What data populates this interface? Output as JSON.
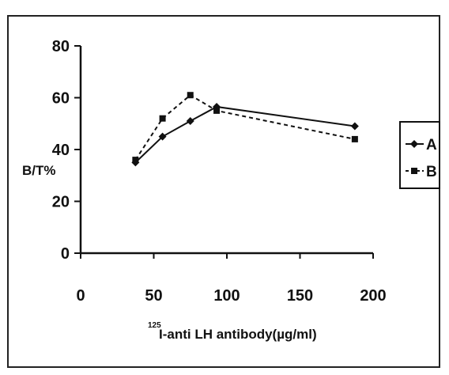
{
  "chart_data": {
    "type": "line",
    "title": "",
    "xlabel": "I-anti LH antibody(µg/ml)",
    "xlabel_superscript": "125",
    "ylabel": "B/T%",
    "xlim": [
      0,
      200
    ],
    "ylim": [
      0,
      80
    ],
    "xticks": [
      "0",
      "50",
      "100",
      "150",
      "200"
    ],
    "yticks": [
      "0",
      "20",
      "40",
      "60",
      "80"
    ],
    "grid": false,
    "legend_position": "right",
    "series": [
      {
        "name": "A",
        "marker": "diamond",
        "line_style": "solid",
        "color": "#111111",
        "x": [
          37.5,
          56,
          75,
          93,
          187.5
        ],
        "y": [
          35,
          45,
          51,
          56.5,
          49
        ]
      },
      {
        "name": "B",
        "marker": "square",
        "line_style": "dashed",
        "color": "#111111",
        "x": [
          37.5,
          56,
          75,
          93,
          187.5
        ],
        "y": [
          36,
          52,
          61,
          55,
          44
        ]
      }
    ]
  }
}
